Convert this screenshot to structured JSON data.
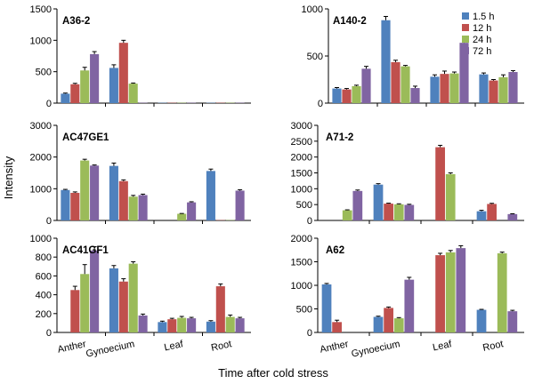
{
  "chart_data": {
    "type": "bar",
    "ylabel": "Intensity",
    "xlabel": "Time after cold stress",
    "categories": [
      "Anther",
      "Gynoecium",
      "Leaf",
      "Root"
    ],
    "series_names": [
      "1.5 h",
      "12 h",
      "24 h",
      "72 h"
    ],
    "colors": [
      "#4f81bd",
      "#c0504d",
      "#9bbb59",
      "#8064a2"
    ],
    "legend_position": "top-right",
    "panels": [
      {
        "title": "A36-2",
        "ylim": [
          0,
          1500
        ],
        "ticks": [
          "0",
          "500",
          "1000",
          "1500"
        ],
        "values": [
          [
            150,
            300,
            520,
            780
          ],
          [
            560,
            960,
            310,
            5
          ],
          [
            5,
            5,
            5,
            5
          ],
          [
            5,
            5,
            5,
            5
          ]
        ],
        "errors": [
          [
            10,
            15,
            50,
            40
          ],
          [
            50,
            40,
            10,
            0
          ],
          [
            0,
            0,
            0,
            0
          ],
          [
            0,
            0,
            0,
            0
          ]
        ]
      },
      {
        "title": "A140-2",
        "ylim": [
          0,
          1000
        ],
        "ticks": [
          "0",
          "500",
          "1000"
        ],
        "values": [
          [
            155,
            145,
            180,
            365
          ],
          [
            880,
            435,
            390,
            160
          ],
          [
            280,
            310,
            315,
            640
          ],
          [
            305,
            240,
            275,
            330
          ]
        ],
        "errors": [
          [
            10,
            10,
            10,
            25
          ],
          [
            40,
            20,
            10,
            20
          ],
          [
            20,
            30,
            15,
            30
          ],
          [
            15,
            10,
            25,
            15
          ]
        ]
      },
      {
        "title": "AC47GE1",
        "ylim": [
          0,
          3000
        ],
        "ticks": [
          "0",
          "1000",
          "2000",
          "3000"
        ],
        "values": [
          [
            960,
            870,
            1890,
            1730
          ],
          [
            1720,
            1240,
            750,
            800
          ],
          [
            0,
            0,
            210,
            570
          ],
          [
            1560,
            10,
            10,
            940
          ]
        ],
        "errors": [
          [
            20,
            30,
            40,
            20
          ],
          [
            90,
            40,
            40,
            30
          ],
          [
            0,
            0,
            10,
            20
          ],
          [
            60,
            0,
            0,
            30
          ]
        ]
      },
      {
        "title": "A71-2",
        "ylim": [
          0,
          3000
        ],
        "ticks": [
          "0",
          "500",
          "1000",
          "1500",
          "2000",
          "2500",
          "3000"
        ],
        "values": [
          [
            0,
            0,
            320,
            930
          ],
          [
            1130,
            530,
            510,
            490
          ],
          [
            0,
            2310,
            1460,
            0
          ],
          [
            290,
            520,
            0,
            200
          ]
        ],
        "errors": [
          [
            0,
            0,
            15,
            30
          ],
          [
            30,
            15,
            15,
            20
          ],
          [
            0,
            60,
            40,
            0
          ],
          [
            30,
            20,
            0,
            10
          ]
        ]
      },
      {
        "title": "AC41GF1",
        "ylim": [
          0,
          1000
        ],
        "ticks": [
          "0",
          "200",
          "400",
          "600",
          "800",
          "1000"
        ],
        "values": [
          [
            0,
            450,
            620,
            870
          ],
          [
            680,
            540,
            730,
            180
          ],
          [
            110,
            140,
            155,
            150
          ],
          [
            115,
            490,
            165,
            150
          ]
        ],
        "errors": [
          [
            0,
            40,
            100,
            40
          ],
          [
            30,
            30,
            20,
            15
          ],
          [
            10,
            10,
            15,
            10
          ],
          [
            10,
            25,
            20,
            10
          ]
        ]
      },
      {
        "title": "A62",
        "ylim": [
          0,
          2000
        ],
        "ticks": [
          "0",
          "500",
          "1000",
          "1500",
          "2000"
        ],
        "values": [
          [
            1020,
            220,
            0,
            0
          ],
          [
            330,
            520,
            300,
            1120
          ],
          [
            0,
            1640,
            1700,
            1790
          ],
          [
            480,
            0,
            1680,
            450
          ]
        ],
        "errors": [
          [
            20,
            40,
            0,
            0
          ],
          [
            15,
            20,
            15,
            50
          ],
          [
            0,
            40,
            40,
            50
          ],
          [
            10,
            0,
            25,
            20
          ]
        ]
      }
    ]
  }
}
